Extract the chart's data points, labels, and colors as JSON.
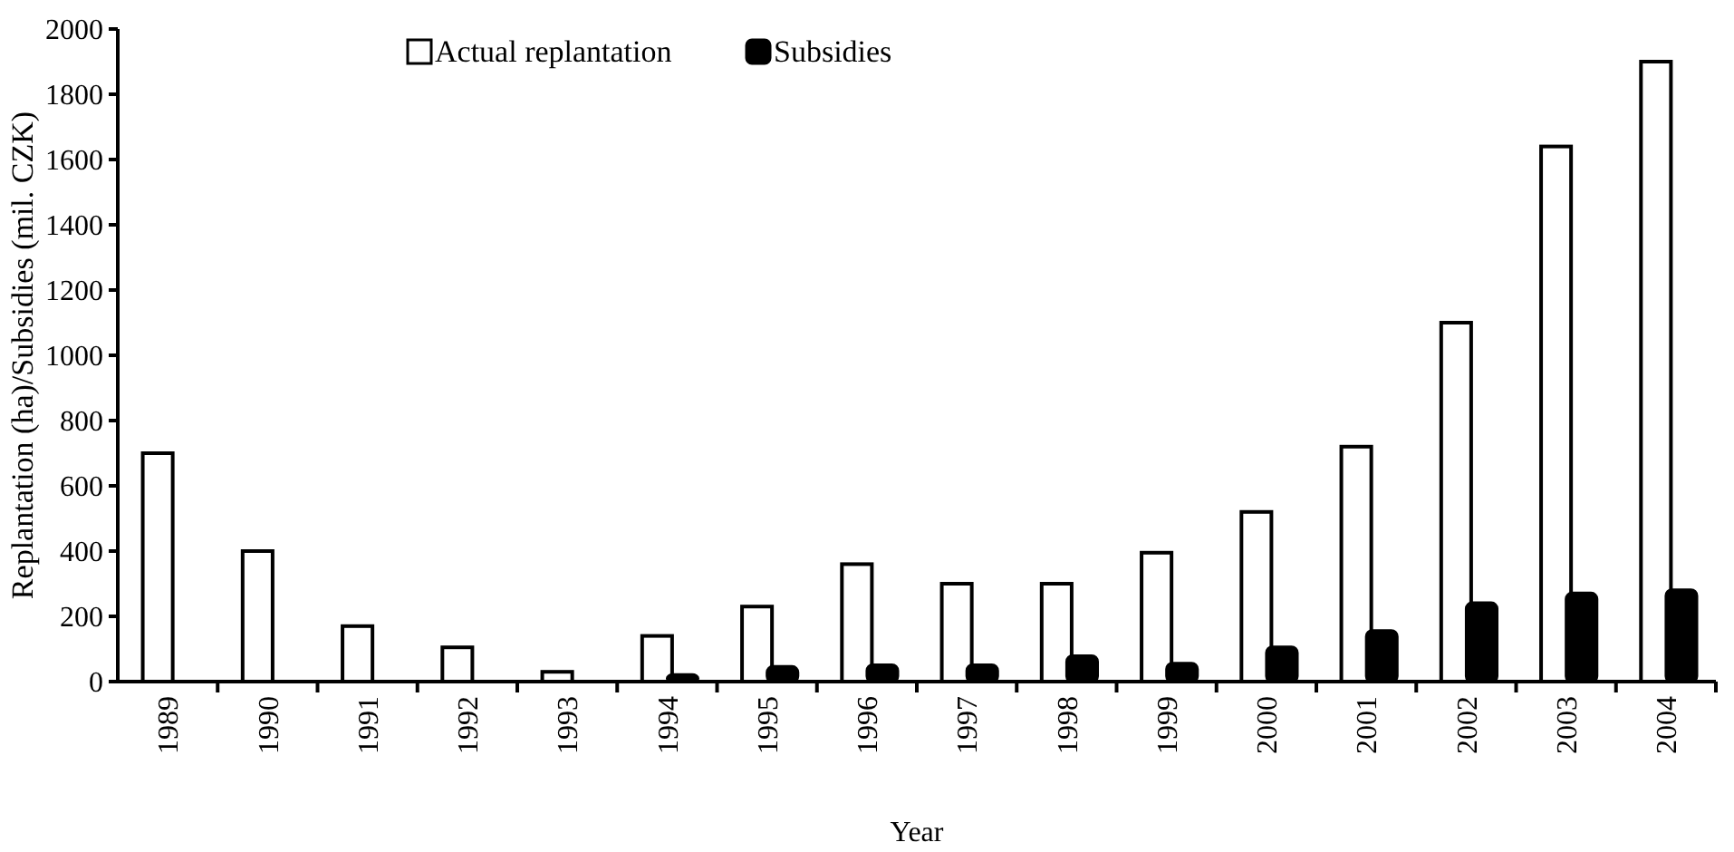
{
  "chart_data": {
    "type": "bar",
    "xlabel": "Year",
    "ylabel": "Replantation (ha)/Subsidies (mil. CZK)",
    "categories": [
      "1989",
      "1990",
      "1991",
      "1992",
      "1993",
      "1994",
      "1995",
      "1996",
      "1997",
      "1998",
      "1999",
      "2000",
      "2001",
      "2002",
      "2003",
      "2004"
    ],
    "series": [
      {
        "name": "Actual replantation",
        "color": "#ffffff",
        "values": [
          700,
          400,
          170,
          105,
          30,
          140,
          230,
          360,
          300,
          300,
          395,
          520,
          720,
          1100,
          1640,
          1900
        ]
      },
      {
        "name": "Subsidies",
        "color": "#000000",
        "values": [
          null,
          null,
          null,
          null,
          null,
          20,
          45,
          50,
          50,
          78,
          55,
          105,
          155,
          240,
          270,
          280
        ]
      }
    ],
    "ylim": [
      0,
      2000
    ],
    "yticks": [
      0,
      200,
      400,
      600,
      800,
      1000,
      1200,
      1400,
      1600,
      1800,
      2000
    ],
    "grid": false,
    "legend": "top"
  }
}
